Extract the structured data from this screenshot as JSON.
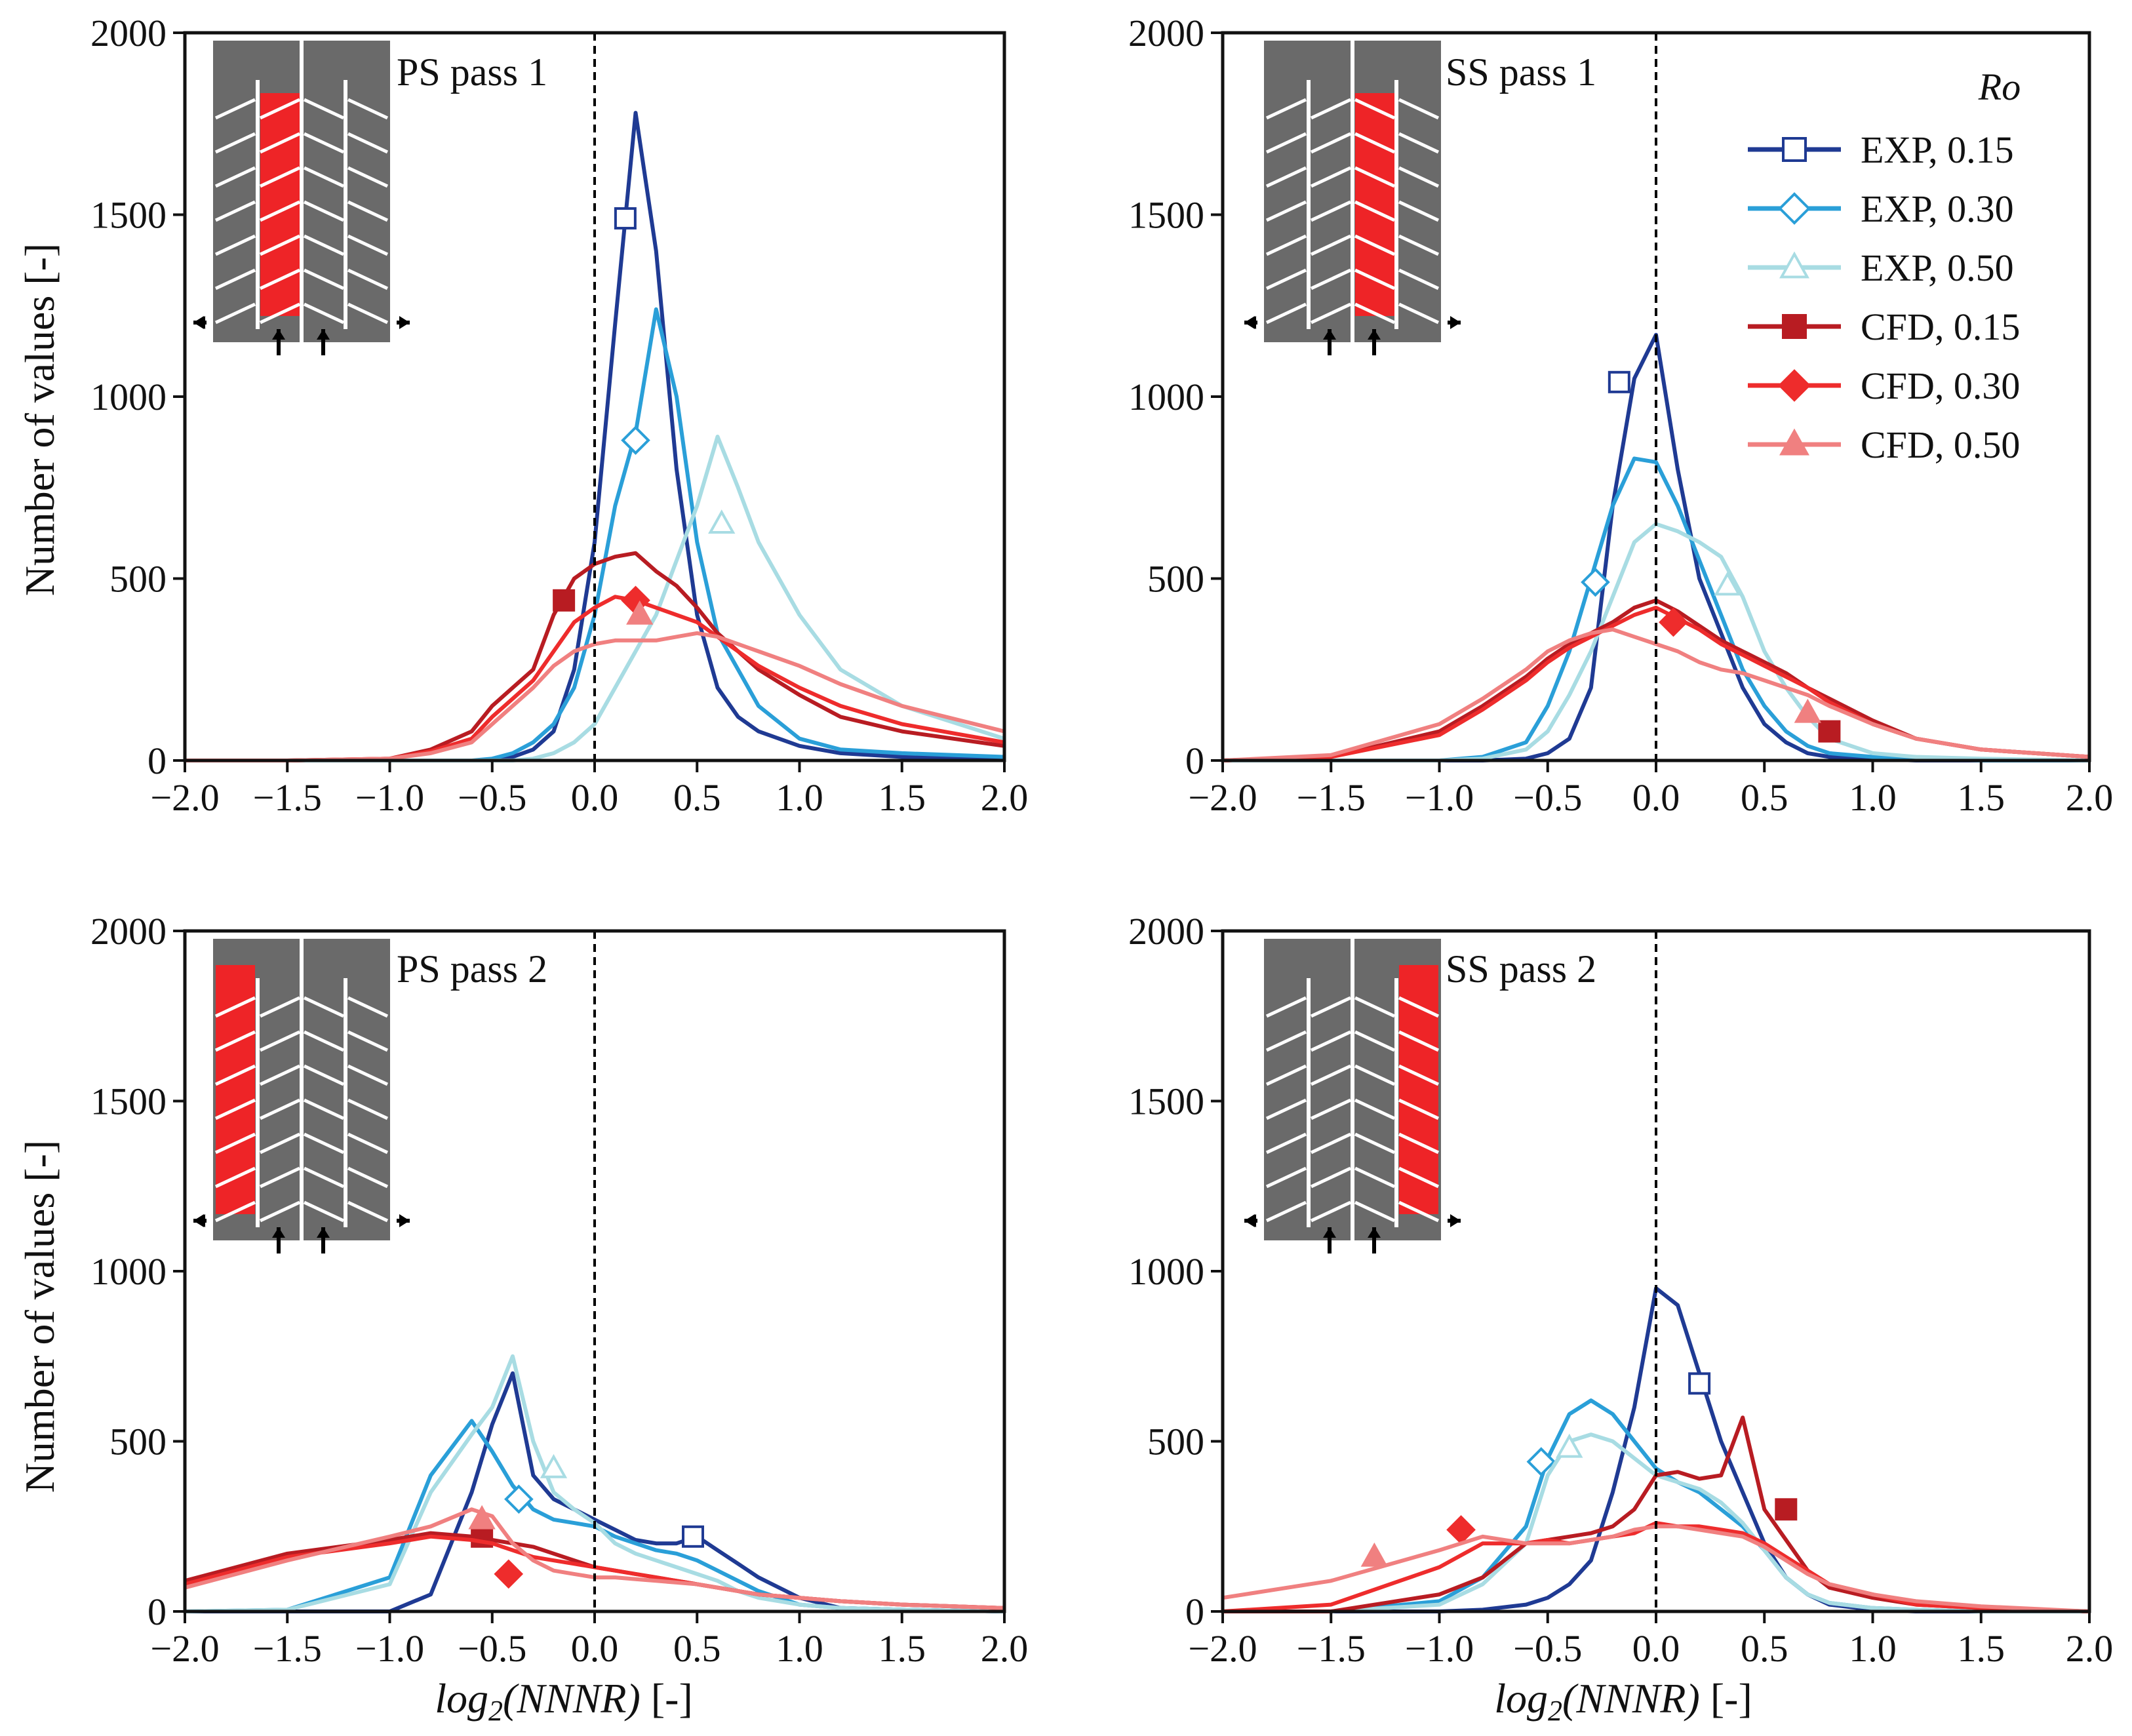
{
  "figure": {
    "ylabel": "Number of values [-]",
    "xlabel_italic": "log",
    "xlabel_sub": "2",
    "xlabel_paren": "(NNNR)",
    "xlabel_units": " [-]"
  },
  "legend": {
    "title": "Ro",
    "entries": [
      {
        "label": "EXP, 0.15",
        "color": "#1f3a93",
        "marker": "square",
        "filled": false
      },
      {
        "label": "EXP, 0.30",
        "color": "#2a9fd8",
        "marker": "diamond",
        "filled": false
      },
      {
        "label": "EXP, 0.50",
        "color": "#a8dce3",
        "marker": "triangle",
        "filled": false
      },
      {
        "label": "CFD, 0.15",
        "color": "#b81c22",
        "marker": "square",
        "filled": true
      },
      {
        "label": "CFD, 0.30",
        "color": "#ee2c2c",
        "marker": "diamond",
        "filled": true
      },
      {
        "label": "CFD, 0.50",
        "color": "#f08080",
        "marker": "triangle",
        "filled": true
      }
    ]
  },
  "chart_data": [
    {
      "type": "line",
      "title": "PS pass 1",
      "highlight": "ps1",
      "xlim": [
        -2.0,
        2.0
      ],
      "ylim": [
        0,
        2000
      ],
      "xticks": [
        "−2.0",
        "−1.5",
        "−1.0",
        "−0.5",
        "0.0",
        "0.5",
        "1.0",
        "1.5",
        "2.0"
      ],
      "yticks": [
        "0",
        "500",
        "1000",
        "1500",
        "2000"
      ],
      "x": [
        -2.0,
        -1.5,
        -1.0,
        -0.8,
        -0.6,
        -0.5,
        -0.4,
        -0.3,
        -0.2,
        -0.1,
        0.0,
        0.1,
        0.2,
        0.3,
        0.4,
        0.5,
        0.6,
        0.7,
        0.8,
        1.0,
        1.2,
        1.5,
        2.0
      ],
      "series": [
        {
          "name": "EXP, 0.15",
          "values": [
            0,
            0,
            0,
            0,
            0,
            0,
            10,
            30,
            80,
            250,
            600,
            1200,
            1780,
            1400,
            800,
            400,
            200,
            120,
            80,
            40,
            20,
            10,
            5
          ],
          "marker_x": 0.15,
          "marker_y": 1490
        },
        {
          "name": "EXP, 0.30",
          "values": [
            0,
            0,
            0,
            0,
            0,
            5,
            20,
            50,
            100,
            200,
            400,
            700,
            900,
            1240,
            1000,
            600,
            350,
            250,
            150,
            60,
            30,
            20,
            10
          ],
          "marker_x": 0.2,
          "marker_y": 880
        },
        {
          "name": "EXP, 0.50",
          "values": [
            0,
            0,
            0,
            0,
            0,
            0,
            0,
            5,
            20,
            50,
            100,
            200,
            300,
            400,
            550,
            700,
            890,
            750,
            600,
            400,
            250,
            150,
            60
          ],
          "marker_x": 0.62,
          "marker_y": 650
        },
        {
          "name": "CFD, 0.15",
          "values": [
            0,
            0,
            5,
            30,
            80,
            150,
            200,
            250,
            400,
            500,
            540,
            560,
            570,
            520,
            480,
            420,
            350,
            300,
            250,
            180,
            120,
            80,
            40
          ],
          "marker_x": -0.15,
          "marker_y": 440
        },
        {
          "name": "CFD, 0.30",
          "values": [
            0,
            0,
            5,
            25,
            60,
            120,
            170,
            220,
            300,
            380,
            420,
            450,
            440,
            420,
            400,
            380,
            340,
            300,
            260,
            200,
            150,
            100,
            50
          ],
          "marker_x": 0.2,
          "marker_y": 440
        },
        {
          "name": "CFD, 0.50",
          "values": [
            0,
            0,
            5,
            20,
            50,
            100,
            150,
            200,
            260,
            300,
            320,
            330,
            330,
            330,
            340,
            350,
            340,
            320,
            300,
            260,
            210,
            150,
            80
          ],
          "marker_x": 0.22,
          "marker_y": 400
        }
      ]
    },
    {
      "type": "line",
      "title": "SS pass 1",
      "highlight": "ss1",
      "xlim": [
        -2.0,
        2.0
      ],
      "ylim": [
        0,
        2000
      ],
      "xticks": [
        "−2.0",
        "−1.5",
        "−1.0",
        "−0.5",
        "0.0",
        "0.5",
        "1.0",
        "1.5",
        "2.0"
      ],
      "yticks": [
        "0",
        "500",
        "1000",
        "1500",
        "2000"
      ],
      "x": [
        -2.0,
        -1.5,
        -1.0,
        -0.8,
        -0.6,
        -0.5,
        -0.4,
        -0.3,
        -0.2,
        -0.1,
        0.0,
        0.1,
        0.2,
        0.3,
        0.4,
        0.5,
        0.6,
        0.7,
        0.8,
        1.0,
        1.2,
        1.5,
        2.0
      ],
      "series": [
        {
          "name": "EXP, 0.15",
          "values": [
            0,
            0,
            0,
            0,
            5,
            20,
            60,
            200,
            700,
            1050,
            1170,
            800,
            500,
            350,
            200,
            100,
            50,
            20,
            10,
            5,
            0,
            0,
            0
          ],
          "marker_x": -0.17,
          "marker_y": 1040
        },
        {
          "name": "EXP, 0.30",
          "values": [
            0,
            0,
            0,
            10,
            50,
            150,
            300,
            500,
            700,
            830,
            820,
            700,
            550,
            400,
            250,
            150,
            80,
            40,
            20,
            10,
            5,
            0,
            0
          ],
          "marker_x": -0.28,
          "marker_y": 490
        },
        {
          "name": "EXP, 0.50",
          "values": [
            0,
            0,
            0,
            5,
            30,
            80,
            180,
            300,
            450,
            600,
            650,
            630,
            600,
            560,
            450,
            300,
            200,
            120,
            60,
            20,
            10,
            5,
            0
          ],
          "marker_x": 0.33,
          "marker_y": 480
        },
        {
          "name": "CFD, 0.15",
          "values": [
            0,
            10,
            80,
            150,
            230,
            280,
            320,
            350,
            380,
            420,
            440,
            410,
            370,
            330,
            300,
            270,
            240,
            200,
            170,
            110,
            60,
            30,
            10
          ],
          "marker_x": 0.8,
          "marker_y": 80
        },
        {
          "name": "CFD, 0.30",
          "values": [
            0,
            10,
            70,
            140,
            220,
            270,
            310,
            340,
            370,
            400,
            420,
            390,
            360,
            320,
            290,
            260,
            230,
            200,
            160,
            100,
            60,
            30,
            10
          ],
          "marker_x": 0.08,
          "marker_y": 380
        },
        {
          "name": "CFD, 0.50",
          "values": [
            0,
            15,
            100,
            170,
            250,
            300,
            330,
            350,
            360,
            340,
            320,
            300,
            270,
            250,
            240,
            220,
            200,
            180,
            150,
            100,
            60,
            30,
            10
          ],
          "marker_x": 0.7,
          "marker_y": 130
        }
      ]
    },
    {
      "type": "line",
      "title": "PS pass 2",
      "highlight": "ps2",
      "xlim": [
        -2.0,
        2.0
      ],
      "ylim": [
        0,
        2000
      ],
      "xticks": [
        "−2.0",
        "−1.5",
        "−1.0",
        "−0.5",
        "0.0",
        "0.5",
        "1.0",
        "1.5",
        "2.0"
      ],
      "yticks": [
        "0",
        "500",
        "1000",
        "1500",
        "2000"
      ],
      "x": [
        -2.0,
        -1.5,
        -1.0,
        -0.8,
        -0.6,
        -0.5,
        -0.4,
        -0.3,
        -0.2,
        -0.1,
        0.0,
        0.1,
        0.2,
        0.3,
        0.4,
        0.5,
        0.6,
        0.7,
        0.8,
        1.0,
        1.2,
        1.5,
        2.0
      ],
      "series": [
        {
          "name": "EXP, 0.15",
          "values": [
            0,
            0,
            0,
            50,
            350,
            550,
            700,
            400,
            330,
            300,
            270,
            240,
            210,
            200,
            200,
            220,
            180,
            140,
            100,
            40,
            10,
            5,
            0
          ],
          "marker_x": 0.48,
          "marker_y": 220
        },
        {
          "name": "EXP, 0.30",
          "values": [
            0,
            5,
            100,
            400,
            560,
            470,
            370,
            300,
            270,
            260,
            250,
            220,
            200,
            180,
            170,
            150,
            120,
            90,
            60,
            20,
            10,
            5,
            0
          ],
          "marker_x": -0.37,
          "marker_y": 330
        },
        {
          "name": "EXP, 0.50",
          "values": [
            0,
            5,
            80,
            350,
            520,
            600,
            750,
            500,
            350,
            300,
            260,
            200,
            170,
            150,
            130,
            110,
            90,
            60,
            40,
            20,
            10,
            5,
            0
          ],
          "marker_x": -0.2,
          "marker_y": 420
        },
        {
          "name": "CFD, 0.15",
          "values": [
            90,
            170,
            210,
            230,
            220,
            210,
            200,
            190,
            170,
            150,
            130,
            120,
            110,
            100,
            90,
            80,
            70,
            60,
            50,
            40,
            30,
            20,
            10
          ],
          "marker_x": -0.55,
          "marker_y": 220
        },
        {
          "name": "CFD, 0.30",
          "values": [
            80,
            160,
            200,
            220,
            210,
            200,
            180,
            160,
            150,
            140,
            130,
            120,
            110,
            100,
            90,
            80,
            70,
            60,
            50,
            40,
            30,
            20,
            10
          ],
          "marker_x": -0.42,
          "marker_y": 110
        },
        {
          "name": "CFD, 0.50",
          "values": [
            70,
            150,
            220,
            250,
            300,
            280,
            200,
            150,
            120,
            110,
            100,
            100,
            95,
            90,
            85,
            80,
            70,
            60,
            50,
            40,
            30,
            20,
            10
          ],
          "marker_x": -0.55,
          "marker_y": 270
        }
      ]
    },
    {
      "type": "line",
      "title": "SS pass 2",
      "highlight": "ss2",
      "xlim": [
        -2.0,
        2.0
      ],
      "ylim": [
        0,
        2000
      ],
      "xticks": [
        "−2.0",
        "−1.5",
        "−1.0",
        "−0.5",
        "0.0",
        "0.5",
        "1.0",
        "1.5",
        "2.0"
      ],
      "yticks": [
        "0",
        "500",
        "1000",
        "1500",
        "2000"
      ],
      "x": [
        -2.0,
        -1.5,
        -1.0,
        -0.8,
        -0.6,
        -0.5,
        -0.4,
        -0.3,
        -0.2,
        -0.1,
        0.0,
        0.1,
        0.2,
        0.3,
        0.4,
        0.5,
        0.6,
        0.7,
        0.8,
        1.0,
        1.2,
        1.5,
        2.0
      ],
      "series": [
        {
          "name": "EXP, 0.15",
          "values": [
            0,
            0,
            0,
            5,
            20,
            40,
            80,
            150,
            350,
            600,
            950,
            900,
            700,
            500,
            350,
            200,
            100,
            50,
            20,
            5,
            0,
            0,
            0
          ],
          "marker_x": 0.2,
          "marker_y": 670
        },
        {
          "name": "EXP, 0.30",
          "values": [
            0,
            0,
            30,
            100,
            250,
            450,
            580,
            620,
            580,
            500,
            420,
            380,
            350,
            300,
            250,
            180,
            100,
            50,
            25,
            10,
            5,
            0,
            0
          ],
          "marker_x": -0.53,
          "marker_y": 440
        },
        {
          "name": "EXP, 0.50",
          "values": [
            0,
            0,
            20,
            80,
            200,
            400,
            500,
            520,
            500,
            450,
            400,
            380,
            360,
            320,
            260,
            180,
            100,
            50,
            25,
            10,
            5,
            0,
            0
          ],
          "marker_x": -0.4,
          "marker_y": 480
        },
        {
          "name": "CFD, 0.15",
          "values": [
            0,
            0,
            50,
            100,
            200,
            210,
            220,
            230,
            250,
            300,
            400,
            410,
            390,
            400,
            570,
            300,
            210,
            120,
            70,
            40,
            20,
            10,
            0
          ],
          "marker_x": 0.6,
          "marker_y": 300
        },
        {
          "name": "CFD, 0.30",
          "values": [
            0,
            20,
            130,
            200,
            200,
            210,
            200,
            210,
            220,
            230,
            260,
            250,
            250,
            240,
            230,
            200,
            160,
            120,
            80,
            50,
            20,
            10,
            0
          ],
          "marker_x": -0.9,
          "marker_y": 240
        },
        {
          "name": "CFD, 0.50",
          "values": [
            40,
            90,
            180,
            220,
            200,
            200,
            200,
            210,
            220,
            240,
            250,
            250,
            240,
            230,
            220,
            190,
            150,
            110,
            80,
            50,
            30,
            15,
            0
          ],
          "marker_x": -1.3,
          "marker_y": 160
        }
      ]
    }
  ]
}
